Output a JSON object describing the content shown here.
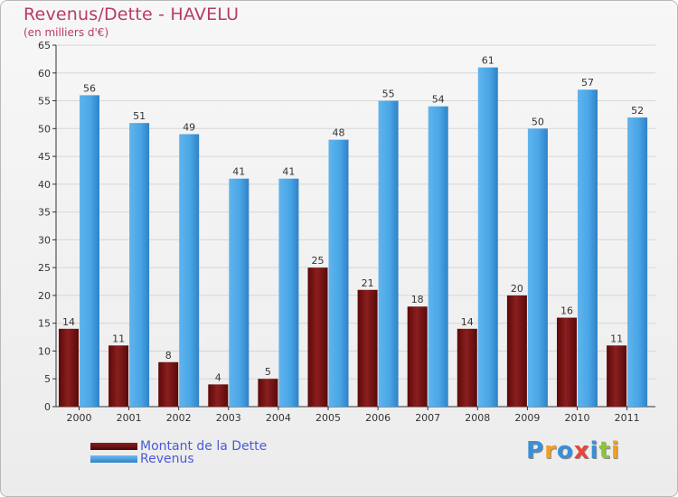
{
  "header": {
    "title": "Revenus/Dette - HAVELU",
    "subtitle": "(en milliers d'€)"
  },
  "colors": {
    "title": "#b83a66",
    "dette": "#7a1414",
    "revenus": "#3f97db",
    "legend_text": "#4a5bd8"
  },
  "legend": {
    "items": [
      {
        "label": "Montant de la Dette",
        "color": "#7a1414"
      },
      {
        "label": "Revenus",
        "color": "#3f97db"
      }
    ]
  },
  "logo": {
    "text": "Proxiti",
    "letters": [
      {
        "char": "P",
        "color": "#3a8fd9"
      },
      {
        "char": "r",
        "color": "#f2a01e"
      },
      {
        "char": "o",
        "color": "#3a8fd9"
      },
      {
        "char": "x",
        "color": "#e8453c"
      },
      {
        "char": "i",
        "color": "#3a8fd9"
      },
      {
        "char": "t",
        "color": "#8cc43c"
      },
      {
        "char": "i",
        "color": "#f2a01e"
      }
    ]
  },
  "chart_data": {
    "type": "bar",
    "title": "Revenus/Dette - HAVELU",
    "subtitle": "(en milliers d'€)",
    "xlabel": "",
    "ylabel": "",
    "ylim": [
      0,
      65
    ],
    "ytick_step": 5,
    "grid": true,
    "legend_position": "bottom-left",
    "categories": [
      "2000",
      "2001",
      "2002",
      "2003",
      "2004",
      "2005",
      "2006",
      "2007",
      "2008",
      "2009",
      "2010",
      "2011"
    ],
    "series": [
      {
        "name": "Montant de la Dette",
        "values": [
          14,
          11,
          8,
          4,
          5,
          25,
          21,
          18,
          14,
          20,
          16,
          11
        ]
      },
      {
        "name": "Revenus",
        "values": [
          56,
          51,
          49,
          41,
          41,
          48,
          55,
          54,
          61,
          50,
          57,
          52
        ]
      }
    ]
  }
}
